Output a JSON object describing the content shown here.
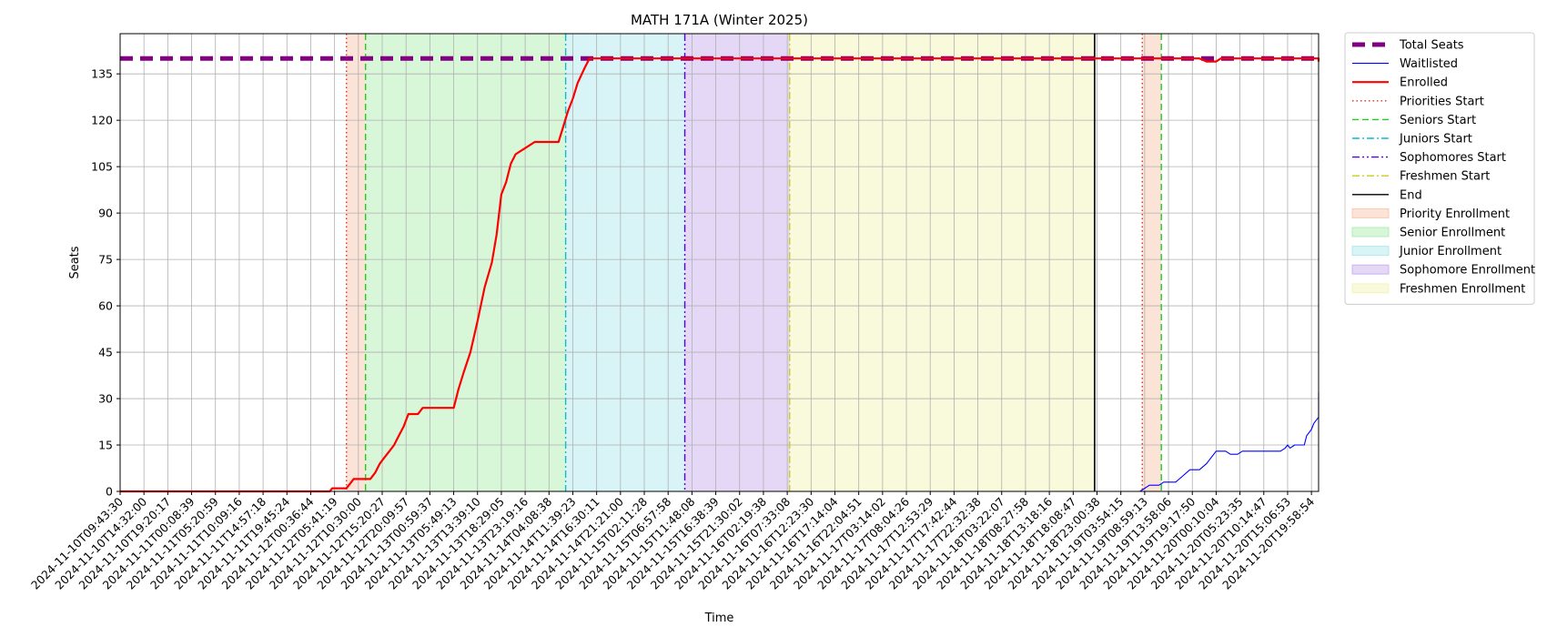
{
  "chart_data": {
    "type": "line",
    "title": "MATH 171A (Winter 2025)",
    "xlabel": "Time",
    "ylabel": "Seats",
    "ylim": [
      0,
      140
    ],
    "yticks": [
      0,
      15,
      30,
      45,
      60,
      75,
      90,
      105,
      120,
      135
    ],
    "grid": true,
    "legend_position": "outside-right",
    "xtick_labels": [
      "2024-11-10T09:43:30",
      "2024-11-10T14:32:00",
      "2024-11-10T19:20:17",
      "2024-11-11T00:08:39",
      "2024-11-11T05:20:59",
      "2024-11-11T10:09:16",
      "2024-11-11T14:57:18",
      "2024-11-11T19:45:24",
      "2024-11-12T00:36:44",
      "2024-11-12T05:41:19",
      "2024-11-12T10:30:00",
      "2024-11-12T15:20:27",
      "2024-11-12T20:09:57",
      "2024-11-13T00:59:37",
      "2024-11-13T05:49:13",
      "2024-11-13T13:39:10",
      "2024-11-13T18:29:05",
      "2024-11-13T23:19:16",
      "2024-11-14T04:08:38",
      "2024-11-14T11:39:23",
      "2024-11-14T16:30:11",
      "2024-11-14T21:21:00",
      "2024-11-15T02:11:28",
      "2024-11-15T06:57:58",
      "2024-11-15T11:48:08",
      "2024-11-15T16:38:39",
      "2024-11-15T21:30:02",
      "2024-11-16T02:19:38",
      "2024-11-16T07:33:08",
      "2024-11-16T12:23:30",
      "2024-11-16T17:14:04",
      "2024-11-16T22:04:51",
      "2024-11-17T03:14:02",
      "2024-11-17T08:04:26",
      "2024-11-17T12:53:29",
      "2024-11-17T17:42:44",
      "2024-11-17T22:32:38",
      "2024-11-18T03:22:07",
      "2024-11-18T08:27:58",
      "2024-11-18T13:18:16",
      "2024-11-18T18:08:47",
      "2024-11-18T23:00:38",
      "2024-11-19T03:54:15",
      "2024-11-19T08:59:13",
      "2024-11-19T13:58:06",
      "2024-11-19T19:17:50",
      "2024-11-20T00:10:04",
      "2024-11-20T05:23:35",
      "2024-11-20T10:14:47",
      "2024-11-20T15:06:53",
      "2024-11-20T19:58:54"
    ],
    "x_range_index": [
      0,
      50.3
    ],
    "series": [
      {
        "name": "Total Seats",
        "style": "dashed-thick",
        "color": "#800080",
        "points": [
          [
            0,
            140
          ],
          [
            50.3,
            140
          ]
        ]
      },
      {
        "name": "Waitlisted",
        "style": "solid-thin",
        "color": "#0000ff",
        "points": [
          [
            0,
            0
          ],
          [
            42.8,
            0
          ],
          [
            43.0,
            1
          ],
          [
            43.2,
            2
          ],
          [
            43.6,
            2
          ],
          [
            43.8,
            3
          ],
          [
            44.3,
            3
          ],
          [
            44.6,
            5
          ],
          [
            44.9,
            7
          ],
          [
            45.3,
            7
          ],
          [
            45.6,
            9
          ],
          [
            45.9,
            12
          ],
          [
            46.0,
            13
          ],
          [
            46.4,
            13
          ],
          [
            46.6,
            12
          ],
          [
            46.9,
            12
          ],
          [
            47.1,
            13
          ],
          [
            48.7,
            13
          ],
          [
            48.9,
            14
          ],
          [
            49.0,
            15
          ],
          [
            49.1,
            14
          ],
          [
            49.3,
            15
          ],
          [
            49.7,
            15
          ],
          [
            49.8,
            18
          ],
          [
            50.0,
            20
          ],
          [
            50.1,
            22
          ],
          [
            50.3,
            24
          ],
          [
            50.5,
            26
          ],
          [
            50.6,
            27
          ],
          [
            50.8,
            29
          ],
          [
            50.9,
            30
          ],
          [
            51.0,
            30
          ],
          [
            51.1,
            32
          ],
          [
            51.2,
            32
          ]
        ]
      },
      {
        "name": "Enrolled",
        "style": "solid-thick",
        "color": "#ff0000",
        "points": [
          [
            0,
            0
          ],
          [
            8.8,
            0
          ],
          [
            8.9,
            1
          ],
          [
            9.5,
            1
          ],
          [
            9.6,
            2
          ],
          [
            9.8,
            4
          ],
          [
            10.5,
            4
          ],
          [
            10.7,
            6
          ],
          [
            10.9,
            9
          ],
          [
            11.1,
            11
          ],
          [
            11.3,
            13
          ],
          [
            11.5,
            15
          ],
          [
            11.7,
            18
          ],
          [
            11.9,
            21
          ],
          [
            12.1,
            25
          ],
          [
            12.5,
            25
          ],
          [
            12.7,
            27
          ],
          [
            14.0,
            27
          ],
          [
            14.2,
            33
          ],
          [
            14.4,
            38
          ],
          [
            14.7,
            45
          ],
          [
            15.0,
            55
          ],
          [
            15.3,
            66
          ],
          [
            15.6,
            74
          ],
          [
            15.8,
            83
          ],
          [
            16.0,
            96
          ],
          [
            16.2,
            100
          ],
          [
            16.4,
            106
          ],
          [
            16.6,
            109
          ],
          [
            16.8,
            110
          ],
          [
            17.0,
            111
          ],
          [
            17.2,
            112
          ],
          [
            17.4,
            113
          ],
          [
            18.4,
            113
          ],
          [
            18.6,
            118
          ],
          [
            18.8,
            123
          ],
          [
            19.0,
            127
          ],
          [
            19.2,
            132
          ],
          [
            19.5,
            137
          ],
          [
            19.7,
            140
          ],
          [
            45.3,
            140
          ],
          [
            45.6,
            139
          ],
          [
            46.0,
            139
          ],
          [
            46.2,
            140
          ],
          [
            51.0,
            140
          ],
          [
            51.1,
            139
          ],
          [
            51.2,
            139
          ]
        ]
      }
    ],
    "event_lines": [
      {
        "name": "Priorities Start",
        "x": 9.5,
        "color": "#e03020",
        "style": "dotted"
      },
      {
        "name": "Seniors Start",
        "x": 10.3,
        "color": "#22cc22",
        "style": "dashed"
      },
      {
        "name": "Juniors Start",
        "x": 18.7,
        "color": "#11bbcc",
        "style": "dashdot"
      },
      {
        "name": "Sophomores Start",
        "x": 23.7,
        "color": "#5500dd",
        "style": "dashdotdot"
      },
      {
        "name": "Freshmen Start",
        "x": 28.1,
        "color": "#cccc22",
        "style": "dashdot"
      },
      {
        "name": "End",
        "x": 40.9,
        "color": "#000000",
        "style": "solid"
      },
      {
        "name": "Priorities Start",
        "x": 42.9,
        "color": "#e03020",
        "style": "dotted"
      },
      {
        "name": "Seniors Start",
        "x": 43.7,
        "color": "#22cc22",
        "style": "dashed"
      }
    ],
    "shaded_regions": [
      {
        "name": "Priority Enrollment",
        "from": 9.5,
        "to": 10.3,
        "color": "#f5b08f"
      },
      {
        "name": "Senior Enrollment",
        "from": 10.3,
        "to": 18.7,
        "color": "#90e690"
      },
      {
        "name": "Junior Enrollment",
        "from": 18.7,
        "to": 23.7,
        "color": "#90e0e6"
      },
      {
        "name": "Sophomore Enrollment",
        "from": 23.7,
        "to": 28.1,
        "color": "#b48fe6"
      },
      {
        "name": "Freshmen Enrollment",
        "from": 28.1,
        "to": 40.9,
        "color": "#eeee99"
      },
      {
        "name": "Priority Enrollment",
        "from": 42.9,
        "to": 43.7,
        "color": "#f5b08f"
      }
    ],
    "legend": [
      {
        "label": "Total Seats",
        "kind": "line",
        "color": "#800080",
        "style": "dashed-thick"
      },
      {
        "label": "Waitlisted",
        "kind": "line",
        "color": "#0000ff",
        "style": "solid-thin"
      },
      {
        "label": "Enrolled",
        "kind": "line",
        "color": "#ff0000",
        "style": "solid-thick"
      },
      {
        "label": "Priorities Start",
        "kind": "line",
        "color": "#e03020",
        "style": "dotted"
      },
      {
        "label": "Seniors Start",
        "kind": "line",
        "color": "#22cc22",
        "style": "dashed"
      },
      {
        "label": "Juniors Start",
        "kind": "line",
        "color": "#11bbcc",
        "style": "dashdot"
      },
      {
        "label": "Sophomores Start",
        "kind": "line",
        "color": "#5500dd",
        "style": "dashdotdot"
      },
      {
        "label": "Freshmen Start",
        "kind": "line",
        "color": "#cccc22",
        "style": "dashdot"
      },
      {
        "label": "End",
        "kind": "line",
        "color": "#000000",
        "style": "solid"
      },
      {
        "label": "Priority Enrollment",
        "kind": "patch",
        "color": "#f5b08f"
      },
      {
        "label": "Senior Enrollment",
        "kind": "patch",
        "color": "#90e690"
      },
      {
        "label": "Junior Enrollment",
        "kind": "patch",
        "color": "#90e0e6"
      },
      {
        "label": "Sophomore Enrollment",
        "kind": "patch",
        "color": "#b48fe6"
      },
      {
        "label": "Freshmen Enrollment",
        "kind": "patch",
        "color": "#eeee99"
      }
    ]
  }
}
